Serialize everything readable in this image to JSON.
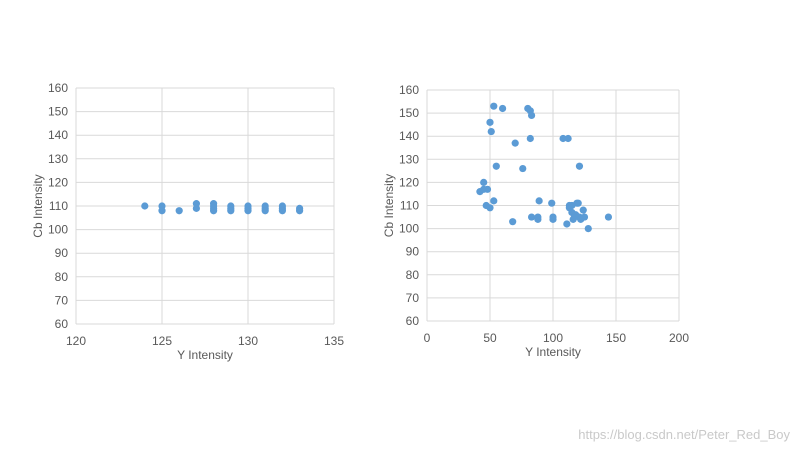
{
  "chart_data": [
    {
      "type": "scatter",
      "xlabel": "Y Intensity",
      "ylabel": "Cb Intensity",
      "xlim": [
        120,
        135
      ],
      "ylim": [
        60,
        160
      ],
      "x_ticks": [
        "120",
        "125",
        "130",
        "135"
      ],
      "y_ticks": [
        "60",
        "70",
        "80",
        "90",
        "100",
        "110",
        "120",
        "130",
        "140",
        "150",
        "160"
      ],
      "grid": "vertical-and-horizontal",
      "series": [
        {
          "color": "#5b9bd5",
          "points": [
            [
              124,
              110
            ],
            [
              125,
              110
            ],
            [
              125,
              108
            ],
            [
              126,
              108
            ],
            [
              127,
              111
            ],
            [
              127,
              109
            ],
            [
              128,
              111
            ],
            [
              128,
              110
            ],
            [
              128,
              109
            ],
            [
              128,
              108
            ],
            [
              129,
              110
            ],
            [
              129,
              109
            ],
            [
              129,
              108
            ],
            [
              130,
              110
            ],
            [
              130,
              109
            ],
            [
              130,
              108
            ],
            [
              131,
              110
            ],
            [
              131,
              109
            ],
            [
              131,
              108
            ],
            [
              132,
              110
            ],
            [
              132,
              109
            ],
            [
              132,
              108
            ],
            [
              133,
              109
            ],
            [
              133,
              108
            ]
          ]
        }
      ]
    },
    {
      "type": "scatter",
      "xlabel": "Y Intensity",
      "ylabel": "Cb Intensity",
      "xlim": [
        0,
        200
      ],
      "ylim": [
        60,
        160
      ],
      "x_ticks": [
        "0",
        "50",
        "100",
        "150",
        "200"
      ],
      "y_ticks": [
        "60",
        "70",
        "80",
        "90",
        "100",
        "110",
        "120",
        "130",
        "140",
        "150",
        "160"
      ],
      "grid": "vertical-and-horizontal",
      "series": [
        {
          "color": "#5b9bd5",
          "points": [
            [
              42,
              116
            ],
            [
              45,
              117
            ],
            [
              45,
              120
            ],
            [
              48,
              117
            ],
            [
              47,
              110
            ],
            [
              50,
              109
            ],
            [
              50,
              146
            ],
            [
              51,
              142
            ],
            [
              53,
              153
            ],
            [
              53,
              112
            ],
            [
              55,
              127
            ],
            [
              60,
              152
            ],
            [
              68,
              103
            ],
            [
              70,
              137
            ],
            [
              76,
              126
            ],
            [
              80,
              152
            ],
            [
              82,
              151
            ],
            [
              83,
              149
            ],
            [
              82,
              139
            ],
            [
              83,
              105
            ],
            [
              88,
              104
            ],
            [
              88,
              105
            ],
            [
              89,
              112
            ],
            [
              99,
              111
            ],
            [
              100,
              105
            ],
            [
              100,
              104
            ],
            [
              108,
              139
            ],
            [
              112,
              139
            ],
            [
              111,
              102
            ],
            [
              113,
              110
            ],
            [
              113,
              109
            ],
            [
              115,
              110
            ],
            [
              115,
              107
            ],
            [
              116,
              104
            ],
            [
              117,
              105
            ],
            [
              118,
              106
            ],
            [
              119,
              111
            ],
            [
              120,
              111
            ],
            [
              121,
              127
            ],
            [
              121,
              105
            ],
            [
              122,
              104
            ],
            [
              124,
              108
            ],
            [
              125,
              105
            ],
            [
              128,
              100
            ],
            [
              144,
              105
            ]
          ]
        }
      ]
    }
  ],
  "watermark": "https://blog.csdn.net/Peter_Red_Boy"
}
